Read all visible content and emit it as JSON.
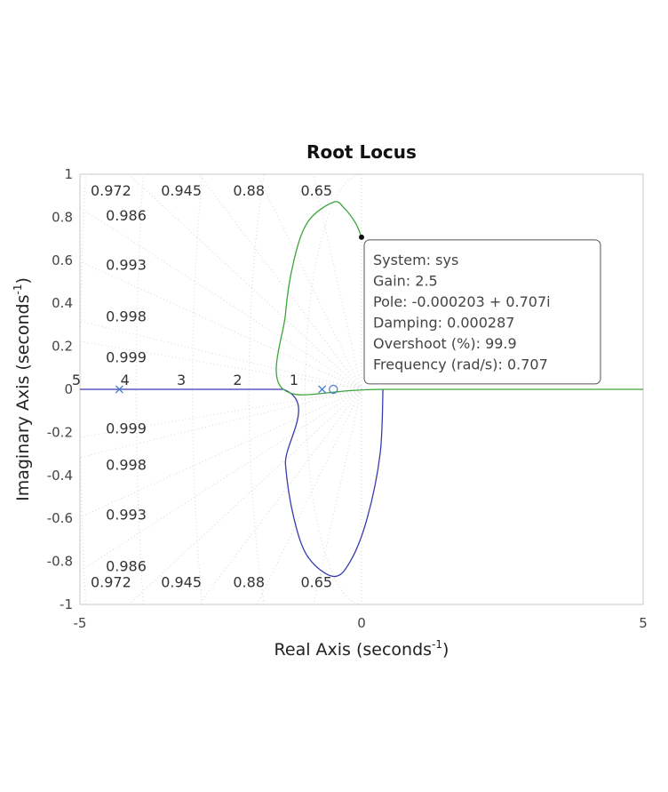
{
  "chart_data": {
    "type": "scatter",
    "title": "Root Locus",
    "xlabel": "Real Axis (seconds",
    "xlabel_exp": "-1",
    "xlabel_close": ")",
    "ylabel": "Imaginary Axis (seconds",
    "ylabel_exp": "-1",
    "ylabel_close": ")",
    "xlim": [
      -5,
      5
    ],
    "ylim": [
      -1,
      1
    ],
    "xticks": [
      "-5",
      "0",
      "5"
    ],
    "yticks": [
      "1",
      "0.8",
      "0.6",
      "0.4",
      "0.2",
      "0",
      "-0.2",
      "-0.4",
      "-0.6",
      "-0.8",
      "-1"
    ],
    "grid": "damping-frequency (sgrid)",
    "series": [
      {
        "color": "#3a3ab0",
        "points": [
          [
            -5,
            0
          ],
          [
            -1.39,
            0
          ],
          [
            -1.35,
            -0.35
          ],
          [
            -1.2,
            -0.6
          ],
          [
            -0.95,
            -0.78
          ],
          [
            -0.5,
            -0.87
          ],
          [
            -0.2,
            -0.8
          ],
          [
            0.1,
            -0.6
          ],
          [
            0.33,
            -0.3
          ],
          [
            0.38,
            0
          ]
        ]
      },
      {
        "color": "#3aa63a",
        "points": [
          [
            5,
            0
          ],
          [
            0.38,
            0
          ],
          [
            -1.39,
            0
          ],
          [
            -1.35,
            0.35
          ],
          [
            -1.2,
            0.6
          ],
          [
            -0.95,
            0.78
          ],
          [
            -0.5,
            0.87
          ],
          [
            -0.3,
            0.84
          ],
          [
            -0.1,
            0.77
          ],
          [
            0,
            0.707
          ]
        ]
      }
    ],
    "poles": [
      [
        -4.3,
        0
      ],
      [
        -0.7,
        0
      ]
    ],
    "zeros": [
      [
        -0.5,
        0
      ]
    ],
    "damping_labels_top": [
      "0.972",
      "0.945",
      "0.88",
      "0.65"
    ],
    "damping_labels_left_upper": [
      "0.986",
      "0.993",
      "0.998",
      "0.999"
    ],
    "damping_labels_left_lower": [
      "0.999",
      "0.998",
      "0.993",
      "0.986"
    ],
    "damping_labels_bottom": [
      "0.972",
      "0.945",
      "0.88",
      "0.65"
    ],
    "frequency_labels": [
      "5",
      "4",
      "3",
      "2",
      "1"
    ],
    "datatip": {
      "point": [
        0,
        0.707
      ],
      "lines": [
        "System: sys",
        "Gain: 2.5",
        "Pole: -0.000203 + 0.707i",
        "Damping: 0.000287",
        "Overshoot (%): 99.9",
        "Frequency (rad/s): 0.707"
      ]
    }
  }
}
